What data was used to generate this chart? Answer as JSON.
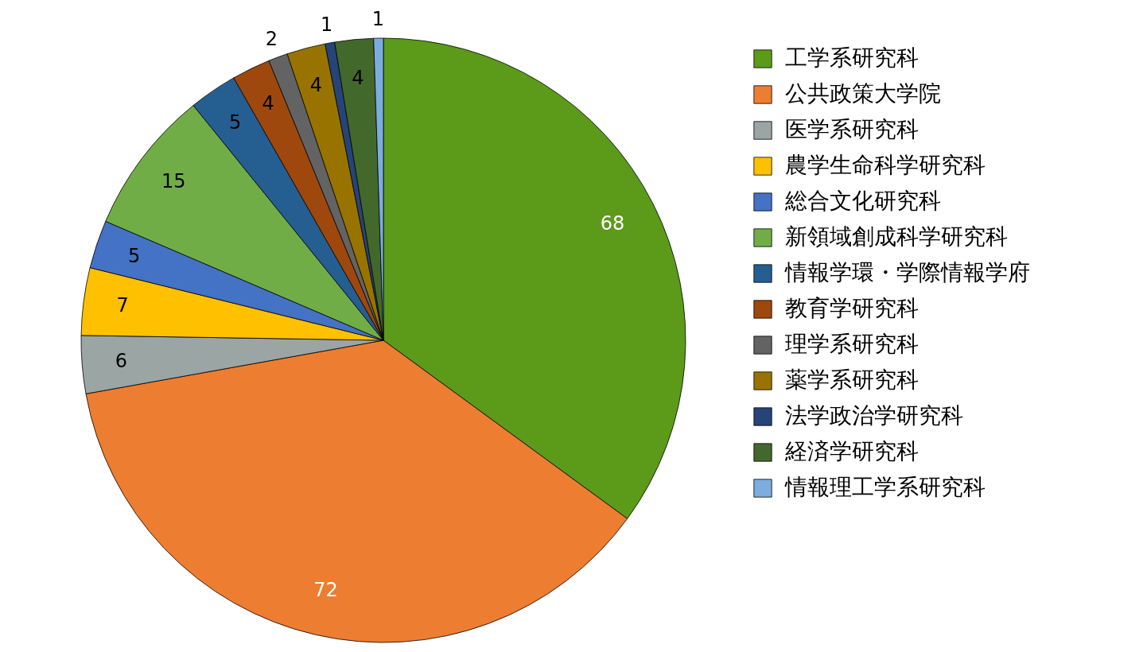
{
  "chart_data": {
    "type": "pie",
    "categories": [
      "工学系研究科",
      "公共政策大学院",
      "医学系研究科",
      "農学生命科学研究科",
      "総合文化研究科",
      "新領域創成科学研究科",
      "情報学環・学際情報学府",
      "教育学研究科",
      "理学系研究科",
      "薬学系研究科",
      "法学政治学研究科",
      "経済学研究科",
      "情報理工学系研究科"
    ],
    "values": [
      68,
      72,
      6,
      7,
      5,
      15,
      5,
      4,
      2,
      4,
      1,
      4,
      1
    ],
    "colors": [
      "#5c9a1a",
      "#ed7d31",
      "#9aa5a4",
      "#ffc000",
      "#4472c4",
      "#70ad47",
      "#255e91",
      "#9e480e",
      "#636363",
      "#997300",
      "#264478",
      "#43682b",
      "#7caddf"
    ],
    "data_labels": true,
    "legend": "right"
  }
}
